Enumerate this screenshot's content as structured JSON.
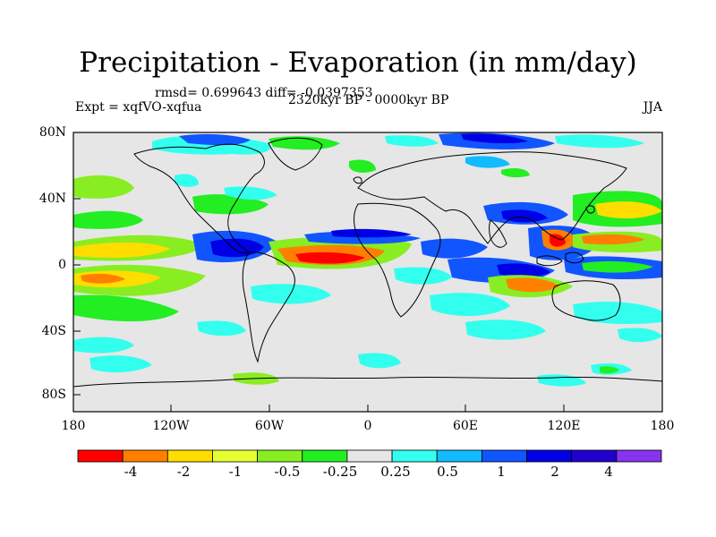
{
  "title": "Precipitation - Evaporation (in mm/day)",
  "stats": "rmsd= 0.699643 diff= -0.0397353",
  "experiment": "Expt = xqfVO-xqfua",
  "period": "2320kyr BP - 0000kyr BP",
  "season": "JJA",
  "lat_labels": [
    "80N",
    "40N",
    "0",
    "40S",
    "80S"
  ],
  "lon_labels": [
    "180",
    "120W",
    "60W",
    "0",
    "60E",
    "120E",
    "180"
  ],
  "colorbar": {
    "colors": [
      "#ff0000",
      "#ff8000",
      "#ffdd00",
      "#e6ff33",
      "#88ee22",
      "#22ee22",
      "#e6e6e6",
      "#33ffee",
      "#11bbff",
      "#1155ff",
      "#0000e6",
      "#2200cc",
      "#8833ee"
    ],
    "labels": [
      "-4",
      "-2",
      "-1",
      "-0.5",
      "-0.25",
      "0.25",
      "0.5",
      "1",
      "2",
      "4"
    ]
  },
  "map_background": "#e6e6e6"
}
